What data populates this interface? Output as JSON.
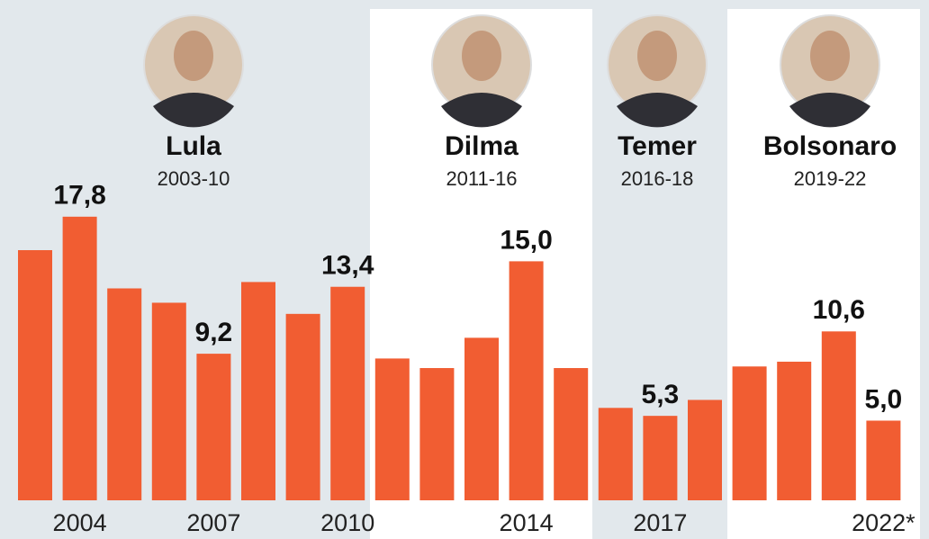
{
  "chart_data": {
    "type": "bar",
    "categories": [
      null,
      "2004",
      null,
      null,
      "2007",
      null,
      null,
      "2010",
      null,
      null,
      null,
      "2014",
      null,
      null,
      "2017",
      null,
      null,
      null,
      null,
      "2022*"
    ],
    "values": [
      15.7,
      17.8,
      13.3,
      12.4,
      9.2,
      13.7,
      11.7,
      13.4,
      8.9,
      8.3,
      10.2,
      15.0,
      8.3,
      5.8,
      5.3,
      6.3,
      8.4,
      8.7,
      10.6,
      5.0
    ],
    "value_labels": [
      null,
      "17,8",
      null,
      null,
      "9,2",
      null,
      null,
      "13,4",
      null,
      null,
      null,
      "15,0",
      null,
      null,
      "5,3",
      null,
      null,
      null,
      "10,6",
      "5,0"
    ],
    "color": "#f15d32",
    "ylim": [
      0,
      31.4
    ],
    "presidents": [
      {
        "name": "Lula",
        "years": "2003-10"
      },
      {
        "name": "Dilma",
        "years": "2011-16"
      },
      {
        "name": "Temer",
        "years": "2016-18"
      },
      {
        "name": "Bolsonaro",
        "years": "2019-22"
      }
    ]
  }
}
